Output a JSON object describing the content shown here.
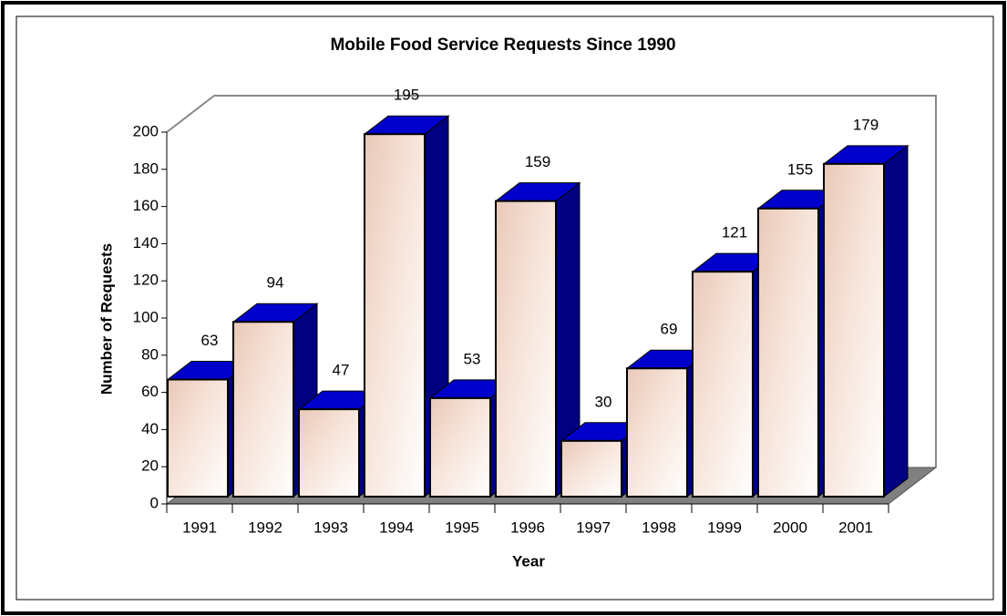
{
  "chart_data": {
    "type": "bar",
    "title": "Mobile Food Service Requests Since 1990",
    "x_label": "Year",
    "y_label": "Number of Requests",
    "categories": [
      "1991",
      "1992",
      "1993",
      "1994",
      "1995",
      "1996",
      "1997",
      "1998",
      "1999",
      "2000",
      "2001"
    ],
    "values": [
      63,
      94,
      47,
      195,
      53,
      159,
      30,
      69,
      121,
      155,
      179
    ],
    "top_color": "#0000cc",
    "side_color": "#000080",
    "floor_color": "#808080",
    "ylim": [
      0,
      200
    ],
    "yticks": [
      0,
      20,
      40,
      60,
      80,
      100,
      120,
      140,
      160,
      180,
      200
    ],
    "grid": false
  }
}
